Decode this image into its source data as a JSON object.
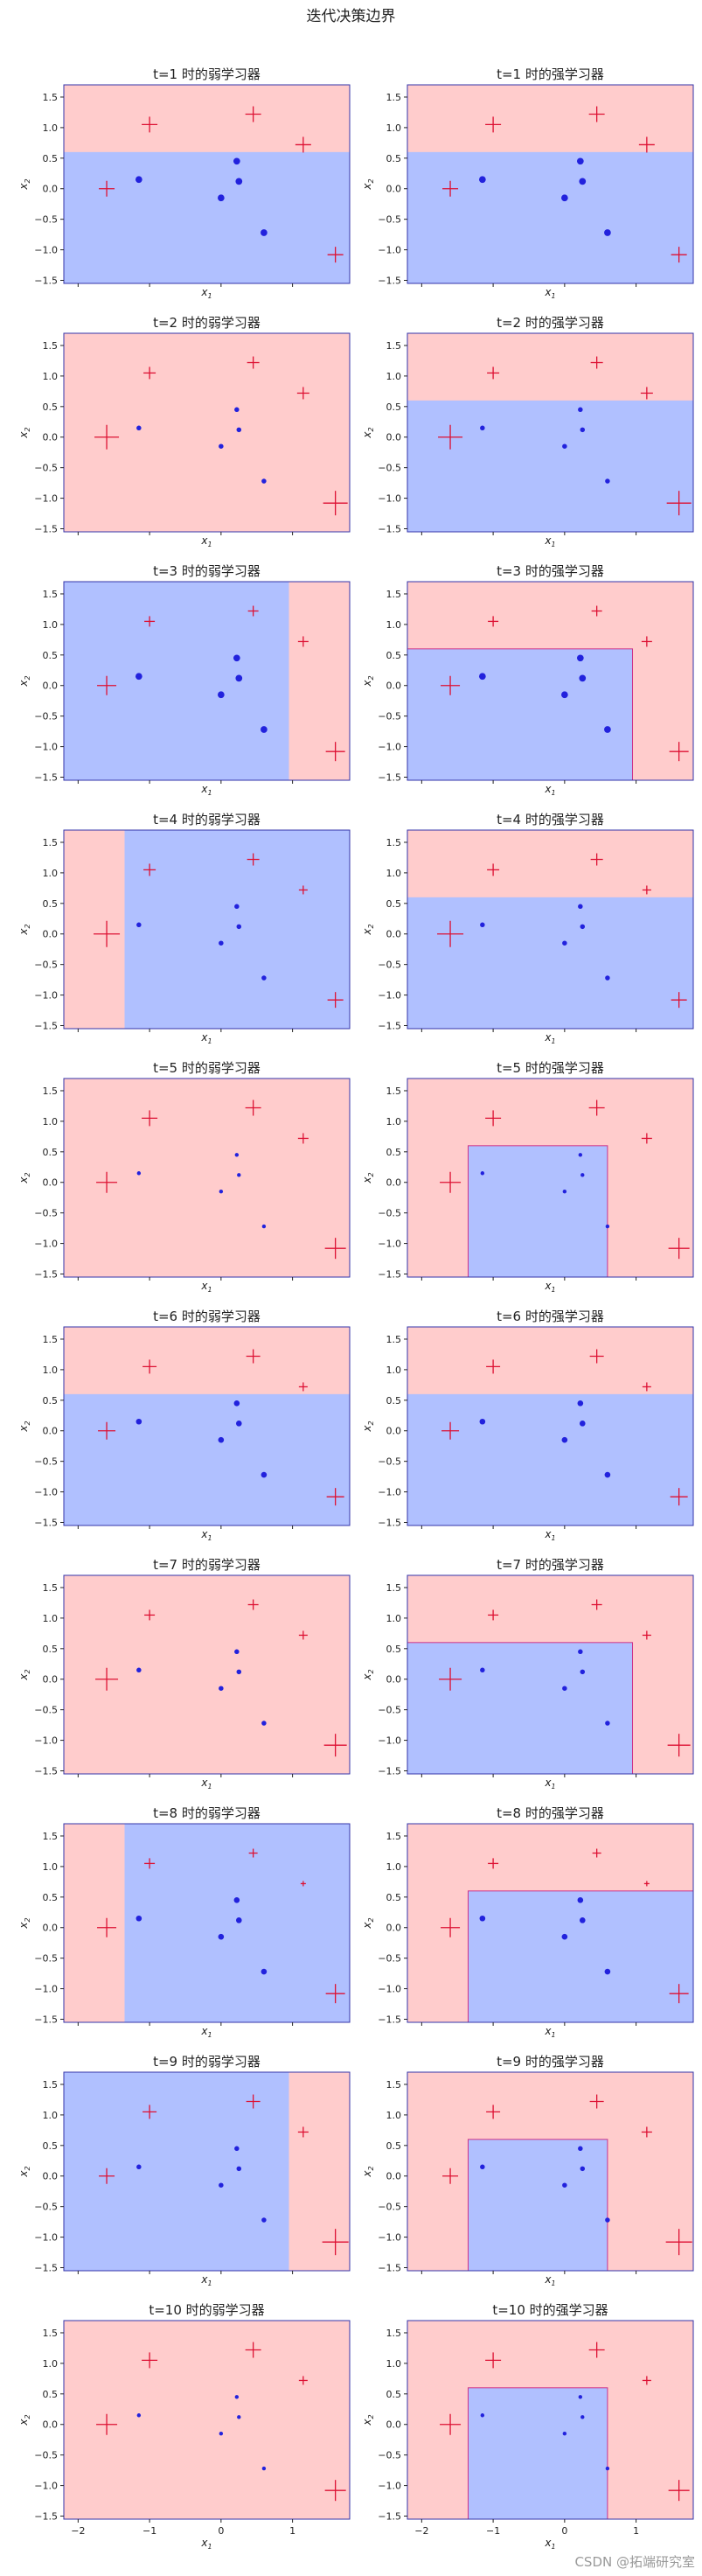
{
  "figure": {
    "title": "迭代决策边界",
    "watermark": "CSDN @拓端研究室"
  },
  "colors": {
    "positive_region": "#ffcccc",
    "negative_region": "#b0c0ff",
    "positive_marker": "#dd1133",
    "negative_marker": "#2222dd",
    "frame": "#3333aa"
  },
  "chart_data": {
    "type": "scatter",
    "description_rows": 10,
    "xlim": [
      -2.2,
      1.8
    ],
    "ylim": [
      -1.55,
      1.7
    ],
    "xticks": [
      -2,
      -1,
      0,
      1
    ],
    "xtick_labels": [
      "−2",
      "−1",
      "0",
      "1"
    ],
    "yticks": [
      -1.5,
      -1.0,
      -0.5,
      0.0,
      0.5,
      1.0,
      1.5
    ],
    "ytick_labels": [
      "−1.5",
      "−1.0",
      "−0.5",
      "0.0",
      "0.5",
      "1.0",
      "1.5"
    ],
    "xlabel": "x1",
    "ylabel": "x2",
    "points": [
      {
        "x": -1.0,
        "y": 1.05,
        "label": 1
      },
      {
        "x": 0.45,
        "y": 1.22,
        "label": 1
      },
      {
        "x": 1.15,
        "y": 0.72,
        "label": 1
      },
      {
        "x": -1.6,
        "y": 0.0,
        "label": 1
      },
      {
        "x": 1.6,
        "y": -1.08,
        "label": 1
      },
      {
        "x": -1.15,
        "y": 0.15,
        "label": -1
      },
      {
        "x": 0.22,
        "y": 0.45,
        "label": -1
      },
      {
        "x": 0.25,
        "y": 0.12,
        "label": -1
      },
      {
        "x": 0.0,
        "y": -0.15,
        "label": -1
      },
      {
        "x": 0.6,
        "y": -0.72,
        "label": -1
      }
    ],
    "panels": [
      {
        "title": "t=1  时的弱学习器",
        "kind": "weak",
        "background": "neg",
        "regions": [
          {
            "class": "pos",
            "x": [
              -2.2,
              1.8
            ],
            "y": [
              0.6,
              1.7
            ]
          }
        ],
        "sizes": [
          9,
          9,
          9,
          9,
          9,
          7,
          7,
          7,
          7,
          7
        ]
      },
      {
        "title": "t=1  时的强学习器",
        "kind": "strong",
        "background": "neg",
        "regions": [
          {
            "class": "pos",
            "x": [
              -2.2,
              1.8
            ],
            "y": [
              0.6,
              1.7
            ]
          }
        ],
        "sizes": [
          9,
          9,
          9,
          9,
          9,
          7,
          7,
          7,
          7,
          7
        ]
      },
      {
        "title": "t=2  时的弱学习器",
        "kind": "weak",
        "background": "pos",
        "regions": [],
        "sizes": [
          7,
          7,
          7,
          14,
          14,
          5,
          5,
          5,
          5,
          5
        ]
      },
      {
        "title": "t=2  时的强学习器",
        "kind": "strong",
        "background": "neg",
        "regions": [
          {
            "class": "pos",
            "x": [
              -2.2,
              1.8
            ],
            "y": [
              0.6,
              1.7
            ]
          }
        ],
        "sizes": [
          7,
          7,
          7,
          14,
          14,
          5,
          5,
          5,
          5,
          5
        ]
      },
      {
        "title": "t=3  时的弱学习器",
        "kind": "weak",
        "background": "neg",
        "regions": [
          {
            "class": "pos",
            "x": [
              0.95,
              1.8
            ],
            "y": [
              -1.55,
              1.7
            ]
          }
        ],
        "sizes": [
          6,
          6,
          6,
          11,
          11,
          7,
          7,
          7,
          7,
          7
        ]
      },
      {
        "title": "t=3  时的强学习器",
        "kind": "strong",
        "background": "pos",
        "regions": [
          {
            "class": "neg",
            "x": [
              -2.2,
              0.95
            ],
            "y": [
              -1.55,
              0.6
            ]
          }
        ],
        "sizes": [
          6,
          6,
          6,
          11,
          11,
          7,
          7,
          7,
          7,
          7
        ]
      },
      {
        "title": "t=4  时的弱学习器",
        "kind": "weak",
        "background": "neg",
        "regions": [
          {
            "class": "pos",
            "x": [
              -2.2,
              -1.35
            ],
            "y": [
              -1.55,
              1.7
            ]
          }
        ],
        "sizes": [
          7,
          7,
          5,
          15,
          9,
          5,
          5,
          5,
          5,
          5
        ]
      },
      {
        "title": "t=4  时的强学习器",
        "kind": "strong",
        "background": "neg",
        "regions": [
          {
            "class": "pos",
            "x": [
              -2.2,
              1.8
            ],
            "y": [
              0.6,
              1.7
            ]
          }
        ],
        "sizes": [
          7,
          7,
          5,
          15,
          9,
          5,
          5,
          5,
          5,
          5
        ]
      },
      {
        "title": "t=5  时的弱学习器",
        "kind": "weak",
        "background": "pos",
        "regions": [],
        "sizes": [
          9,
          9,
          6,
          12,
          12,
          4,
          4,
          4,
          4,
          4
        ]
      },
      {
        "title": "t=5  时的强学习器",
        "kind": "strong",
        "background": "pos",
        "regions": [
          {
            "class": "neg",
            "x": [
              -1.35,
              0.6
            ],
            "y": [
              -1.55,
              0.6
            ]
          }
        ],
        "sizes": [
          9,
          9,
          6,
          12,
          12,
          4,
          4,
          4,
          4,
          4
        ]
      },
      {
        "title": "t=6  时的弱学习器",
        "kind": "weak",
        "background": "neg",
        "regions": [
          {
            "class": "pos",
            "x": [
              -2.2,
              1.8
            ],
            "y": [
              0.6,
              1.7
            ]
          }
        ],
        "sizes": [
          8,
          8,
          5,
          10,
          10,
          6,
          6,
          6,
          6,
          6
        ]
      },
      {
        "title": "t=6  时的强学习器",
        "kind": "strong",
        "background": "neg",
        "regions": [
          {
            "class": "pos",
            "x": [
              -2.2,
              1.8
            ],
            "y": [
              0.6,
              1.7
            ]
          }
        ],
        "sizes": [
          8,
          8,
          5,
          10,
          10,
          6,
          6,
          6,
          6,
          6
        ]
      },
      {
        "title": "t=7  时的弱学习器",
        "kind": "weak",
        "background": "pos",
        "regions": [],
        "sizes": [
          6,
          6,
          5,
          13,
          13,
          5,
          5,
          5,
          5,
          5
        ]
      },
      {
        "title": "t=7  时的强学习器",
        "kind": "strong",
        "background": "pos",
        "regions": [
          {
            "class": "neg",
            "x": [
              -2.2,
              0.95
            ],
            "y": [
              -1.55,
              0.6
            ]
          }
        ],
        "sizes": [
          6,
          6,
          5,
          13,
          13,
          5,
          5,
          5,
          5,
          5
        ]
      },
      {
        "title": "t=8  时的弱学习器",
        "kind": "weak",
        "background": "neg",
        "regions": [
          {
            "class": "pos",
            "x": [
              -2.2,
              -1.35
            ],
            "y": [
              -1.55,
              1.7
            ]
          }
        ],
        "sizes": [
          6,
          5,
          3,
          11,
          11,
          6,
          6,
          6,
          6,
          6
        ]
      },
      {
        "title": "t=8  时的强学习器",
        "kind": "strong",
        "background": "pos",
        "regions": [
          {
            "class": "neg",
            "x": [
              -1.35,
              1.8
            ],
            "y": [
              -1.55,
              0.6
            ]
          }
        ],
        "sizes": [
          6,
          5,
          3,
          11,
          11,
          6,
          6,
          6,
          6,
          6
        ]
      },
      {
        "title": "t=9  时的弱学习器",
        "kind": "weak",
        "background": "neg",
        "regions": [
          {
            "class": "pos",
            "x": [
              0.95,
              1.8
            ],
            "y": [
              -1.55,
              1.7
            ]
          }
        ],
        "sizes": [
          8,
          8,
          6,
          9,
          15,
          5,
          5,
          5,
          5,
          5
        ]
      },
      {
        "title": "t=9  时的强学习器",
        "kind": "strong",
        "background": "pos",
        "regions": [
          {
            "class": "neg",
            "x": [
              -1.35,
              0.6
            ],
            "y": [
              -1.55,
              0.6
            ]
          }
        ],
        "sizes": [
          8,
          8,
          6,
          9,
          15,
          5,
          5,
          5,
          5,
          5
        ]
      },
      {
        "title": "t=10  时的弱学习器",
        "kind": "weak",
        "background": "pos",
        "regions": [],
        "sizes": [
          9,
          9,
          5,
          12,
          12,
          4,
          4,
          4,
          4,
          4
        ]
      },
      {
        "title": "t=10  时的强学习器",
        "kind": "strong",
        "background": "pos",
        "regions": [
          {
            "class": "neg",
            "x": [
              -1.35,
              0.6
            ],
            "y": [
              -1.55,
              0.6
            ]
          }
        ],
        "sizes": [
          9,
          9,
          5,
          12,
          12,
          4,
          4,
          4,
          4,
          4
        ]
      }
    ]
  }
}
